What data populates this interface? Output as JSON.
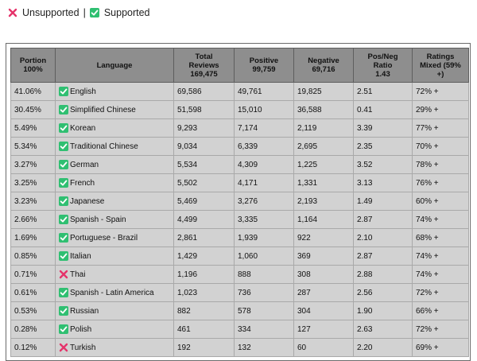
{
  "legend": {
    "unsupported_label": "Unsupported",
    "separator": "|",
    "supported_label": "Supported"
  },
  "colors": {
    "supported_icon_bg": "#2fbf71",
    "unsupported_icon": "#e5336a",
    "header_bg": "#8e8e8e",
    "cell_bg": "#d2d2d2"
  },
  "table": {
    "headers": {
      "portion": [
        "Portion",
        "100%"
      ],
      "language": [
        "Language"
      ],
      "total": [
        "Total",
        "Reviews",
        "169,475"
      ],
      "positive": [
        "Positive",
        "99,759"
      ],
      "negative": [
        "Negative",
        "69,716"
      ],
      "ratio": [
        "Pos/Neg",
        "Ratio",
        "1.43"
      ],
      "ratings": [
        "Ratings",
        "Mixed (59%",
        "+)"
      ]
    },
    "rows": [
      {
        "portion": "41.06%",
        "language": "English",
        "supported": true,
        "total": "69,586",
        "positive": "49,761",
        "negative": "19,825",
        "ratio": "2.51",
        "rating": "72% +"
      },
      {
        "portion": "30.45%",
        "language": "Simplified Chinese",
        "supported": true,
        "total": "51,598",
        "positive": "15,010",
        "negative": "36,588",
        "ratio": "0.41",
        "rating": "29% +"
      },
      {
        "portion": "5.49%",
        "language": "Korean",
        "supported": true,
        "total": "9,293",
        "positive": "7,174",
        "negative": "2,119",
        "ratio": "3.39",
        "rating": "77% +"
      },
      {
        "portion": "5.34%",
        "language": "Traditional Chinese",
        "supported": true,
        "total": "9,034",
        "positive": "6,339",
        "negative": "2,695",
        "ratio": "2.35",
        "rating": "70% +"
      },
      {
        "portion": "3.27%",
        "language": "German",
        "supported": true,
        "total": "5,534",
        "positive": "4,309",
        "negative": "1,225",
        "ratio": "3.52",
        "rating": "78% +"
      },
      {
        "portion": "3.25%",
        "language": "French",
        "supported": true,
        "total": "5,502",
        "positive": "4,171",
        "negative": "1,331",
        "ratio": "3.13",
        "rating": "76% +"
      },
      {
        "portion": "3.23%",
        "language": "Japanese",
        "supported": true,
        "total": "5,469",
        "positive": "3,276",
        "negative": "2,193",
        "ratio": "1.49",
        "rating": "60% +"
      },
      {
        "portion": "2.66%",
        "language": "Spanish - Spain",
        "supported": true,
        "total": "4,499",
        "positive": "3,335",
        "negative": "1,164",
        "ratio": "2.87",
        "rating": "74% +"
      },
      {
        "portion": "1.69%",
        "language": "Portuguese - Brazil",
        "supported": true,
        "total": "2,861",
        "positive": "1,939",
        "negative": "922",
        "ratio": "2.10",
        "rating": "68% +"
      },
      {
        "portion": "0.85%",
        "language": "Italian",
        "supported": true,
        "total": "1,429",
        "positive": "1,060",
        "negative": "369",
        "ratio": "2.87",
        "rating": "74% +"
      },
      {
        "portion": "0.71%",
        "language": "Thai",
        "supported": false,
        "total": "1,196",
        "positive": "888",
        "negative": "308",
        "ratio": "2.88",
        "rating": "74% +"
      },
      {
        "portion": "0.61%",
        "language": "Spanish - Latin America",
        "supported": true,
        "total": "1,023",
        "positive": "736",
        "negative": "287",
        "ratio": "2.56",
        "rating": "72% +"
      },
      {
        "portion": "0.53%",
        "language": "Russian",
        "supported": true,
        "total": "882",
        "positive": "578",
        "negative": "304",
        "ratio": "1.90",
        "rating": "66% +"
      },
      {
        "portion": "0.28%",
        "language": "Polish",
        "supported": true,
        "total": "461",
        "positive": "334",
        "negative": "127",
        "ratio": "2.63",
        "rating": "72% +"
      },
      {
        "portion": "0.12%",
        "language": "Turkish",
        "supported": false,
        "total": "192",
        "positive": "132",
        "negative": "60",
        "ratio": "2.20",
        "rating": "69% +"
      }
    ]
  }
}
